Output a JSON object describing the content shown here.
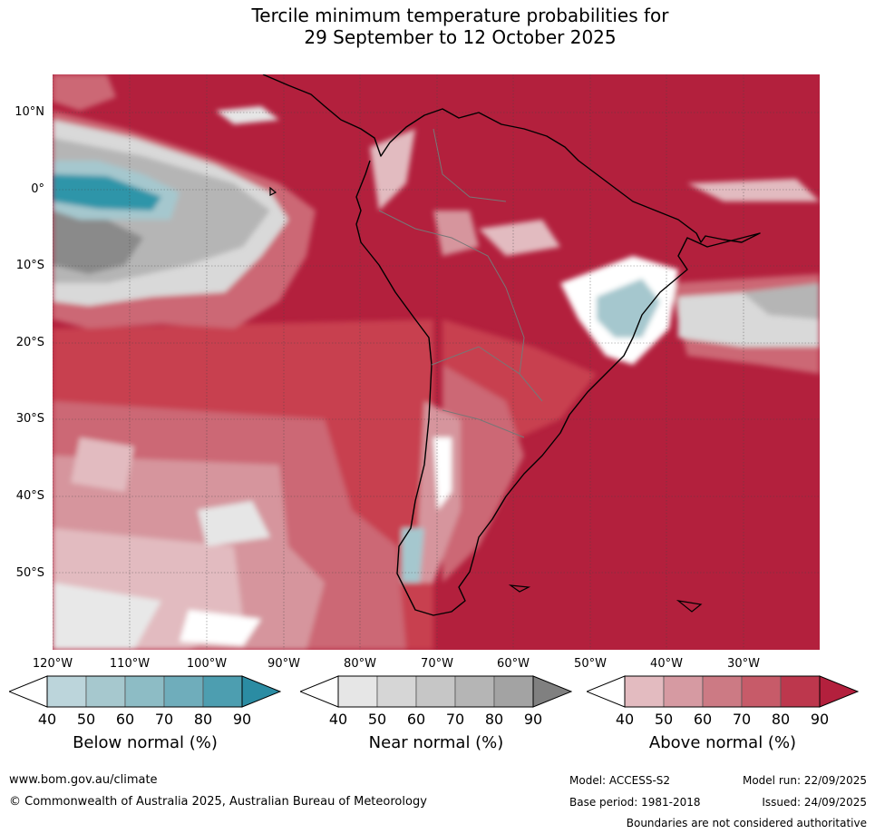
{
  "title": {
    "line1": "Tercile minimum temperature probabilities for",
    "line2": "29 September to 12 October 2025"
  },
  "map": {
    "region": "South America and adjacent oceans",
    "lat_labels": [
      "10°N",
      "0°",
      "10°S",
      "20°S",
      "30°S",
      "40°S",
      "50°S"
    ],
    "lon_labels": [
      "120°W",
      "110°W",
      "100°W",
      "90°W",
      "80°W",
      "70°W",
      "60°W",
      "50°W",
      "40°W",
      "30°W"
    ],
    "colors": {
      "above_90": "#b3203d",
      "above_80": "#c8414f",
      "above_70": "#cc6774",
      "above_60": "#d6959d",
      "above_50": "#e2bbc0",
      "near_50": "#d9d9d9",
      "near_70": "#b5b5b5",
      "near_90": "#8a8a8a",
      "below_50": "#a5c7ce",
      "below_80": "#2f95a9"
    }
  },
  "legends": [
    {
      "title": "Below normal (%)",
      "ticks": [
        "40",
        "50",
        "60",
        "70",
        "80",
        "90"
      ],
      "colors": [
        "#bcd5db",
        "#a6c8ce",
        "#8dbcc5",
        "#6fadbb",
        "#4d9eb0",
        "#2b8ca3"
      ]
    },
    {
      "title": "Near normal (%)",
      "ticks": [
        "40",
        "50",
        "60",
        "70",
        "80",
        "90"
      ],
      "colors": [
        "#e6e6e6",
        "#d6d6d6",
        "#c6c6c6",
        "#b5b5b5",
        "#a3a3a3",
        "#808080"
      ]
    },
    {
      "title": "Above normal (%)",
      "ticks": [
        "40",
        "50",
        "60",
        "70",
        "80",
        "90"
      ],
      "colors": [
        "#e3bbc0",
        "#d69aa2",
        "#cc7a84",
        "#c75b69",
        "#bd374d",
        "#b3203d"
      ]
    }
  ],
  "footer": {
    "website": "www.bom.gov.au/climate",
    "copyright": "© Commonwealth of Australia 2025, Australian Bureau of Meteorology",
    "model": "Model: ACCESS-S2",
    "base_period": "Base period: 1981-2018",
    "model_run": "Model run: 22/09/2025",
    "issued": "Issued: 24/09/2025",
    "disclaimer": "Boundaries are not considered authoritative"
  }
}
